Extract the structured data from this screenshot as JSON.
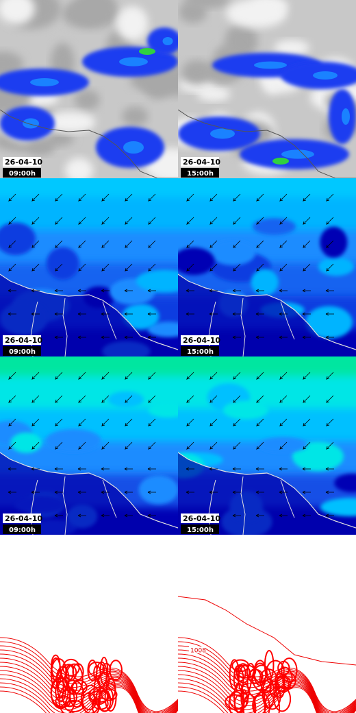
{
  "panels": [
    {
      "date": "26-04-10",
      "time": "09:00h"
    },
    {
      "date": "26-04-10",
      "time": "15:00h"
    },
    {
      "date": "26-04-10",
      "time": "09:00h"
    },
    {
      "date": "26-04-10",
      "time": "15:00h"
    },
    {
      "date": "26-04-10",
      "time": "09:00h"
    },
    {
      "date": "26-04-10",
      "time": "15:00h"
    }
  ],
  "contour_labels": [
    "1008"
  ]
}
